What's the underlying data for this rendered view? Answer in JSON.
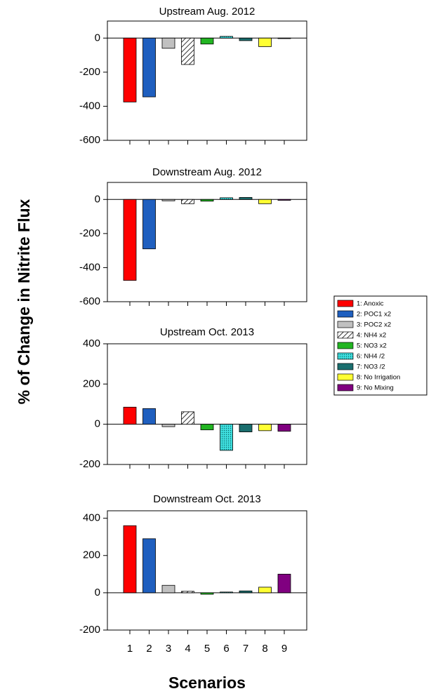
{
  "ylabel": "% of Change in Nitrite Flux",
  "xlabel": "Scenarios",
  "legend": {
    "entries": [
      {
        "label": "1: Anoxic",
        "color": "#ff0000"
      },
      {
        "label": "2: POC1 x2",
        "color": "#1f5fbf"
      },
      {
        "label": "3: POC2 x2",
        "color": "#c0c0c0"
      },
      {
        "label": "4: NH4 x2",
        "color": "#ffffff",
        "pattern": "hatch"
      },
      {
        "label": "5: NO3 x2",
        "color": "#22b522"
      },
      {
        "label": "6: NH4 /2",
        "color": "#3fe0e0",
        "pattern": "dots"
      },
      {
        "label": "7: NO3 /2",
        "color": "#1a6e6e"
      },
      {
        "label": "8: No Irrigation",
        "color": "#ffff33"
      },
      {
        "label": "9: No Mixing",
        "color": "#800080"
      }
    ]
  },
  "chart_data": [
    {
      "type": "bar",
      "title": "Upstream Aug. 2012",
      "values": [
        -375,
        -345,
        -60,
        -155,
        -35,
        10,
        -15,
        -50,
        -3
      ],
      "ylim": [
        -600,
        100
      ],
      "yticks": [
        -600,
        -400,
        -200,
        0
      ]
    },
    {
      "type": "bar",
      "title": "Downstream Aug. 2012",
      "values": [
        -475,
        -290,
        -8,
        -25,
        -10,
        10,
        12,
        -25,
        -5
      ],
      "ylim": [
        -600,
        100
      ],
      "yticks": [
        -600,
        -400,
        -200,
        0
      ]
    },
    {
      "type": "bar",
      "title": "Upstream Oct. 2013",
      "values": [
        85,
        78,
        -12,
        62,
        -28,
        -130,
        -38,
        -32,
        -35
      ],
      "ylim": [
        -200,
        400
      ],
      "yticks": [
        -200,
        0,
        200,
        400
      ]
    },
    {
      "type": "bar",
      "title": "Downstream Oct. 2013",
      "categories": [
        "1",
        "2",
        "3",
        "4",
        "5",
        "6",
        "7",
        "8",
        "9"
      ],
      "values": [
        360,
        290,
        40,
        8,
        -8,
        4,
        10,
        30,
        100
      ],
      "ylim": [
        -200,
        440
      ],
      "yticks": [
        -200,
        0,
        200,
        400
      ]
    }
  ]
}
